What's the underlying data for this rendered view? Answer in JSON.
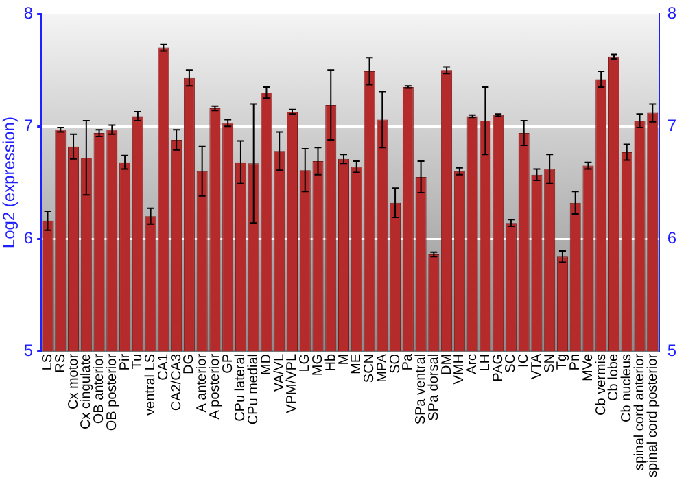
{
  "chart_data": {
    "type": "bar",
    "ylabel": "Log2 (expression)",
    "categories": [
      "LS",
      "RS",
      "Cx motor",
      "Cx cingulate",
      "OB anterior",
      "OB posterior",
      "Pir",
      "Tu",
      "ventral LS",
      "CA1",
      "CA2/CA3",
      "DG",
      "A anterior",
      "A posterior",
      "GP",
      "CPu lateral",
      "CPu medial",
      "MD",
      "VA/VL",
      "VPM/VPL",
      "LG",
      "MG",
      "Hb",
      "M",
      "ME",
      "SCN",
      "MPA",
      "SO",
      "Pa",
      "SPa ventral",
      "SPa dorsal",
      "DM",
      "VMH",
      "Arc",
      "LH",
      "PAG",
      "SC",
      "IC",
      "VTA",
      "SN",
      "Tg",
      "Pn",
      "MVe",
      "Cb vermis",
      "Cb lobe",
      "Cb nucleus",
      "spinal cord anterior",
      "spinal cord posterior"
    ],
    "values": [
      6.16,
      6.97,
      6.82,
      6.72,
      6.94,
      6.97,
      6.68,
      7.09,
      6.2,
      7.7,
      6.88,
      7.43,
      6.6,
      7.16,
      7.03,
      6.68,
      6.67,
      7.3,
      6.78,
      7.13,
      6.61,
      6.69,
      7.19,
      6.71,
      6.64,
      7.49,
      7.06,
      6.32,
      7.35,
      6.55,
      5.86,
      7.5,
      6.6,
      7.09,
      7.05,
      7.1,
      6.14,
      6.94,
      6.57,
      6.62,
      5.84,
      6.32,
      6.65,
      7.42,
      7.62,
      6.77,
      7.05,
      7.12
    ],
    "errors": [
      0.085,
      0.02,
      0.11,
      0.33,
      0.03,
      0.04,
      0.06,
      0.04,
      0.07,
      0.03,
      0.09,
      0.07,
      0.22,
      0.02,
      0.03,
      0.19,
      0.53,
      0.05,
      0.17,
      0.02,
      0.19,
      0.12,
      0.31,
      0.04,
      0.05,
      0.12,
      0.25,
      0.13,
      0.01,
      0.14,
      0.02,
      0.03,
      0.03,
      0.01,
      0.3,
      0.01,
      0.03,
      0.11,
      0.05,
      0.13,
      0.05,
      0.1,
      0.03,
      0.07,
      0.02,
      0.07,
      0.06,
      0.08
    ],
    "color": "#b52a2a",
    "ylim": [
      5,
      8
    ],
    "yticks": [
      5,
      6,
      7,
      8
    ],
    "y2lim": [
      5,
      8
    ],
    "y2ticks": [
      5,
      6,
      7,
      8
    ],
    "grid": "y",
    "legend": false
  }
}
